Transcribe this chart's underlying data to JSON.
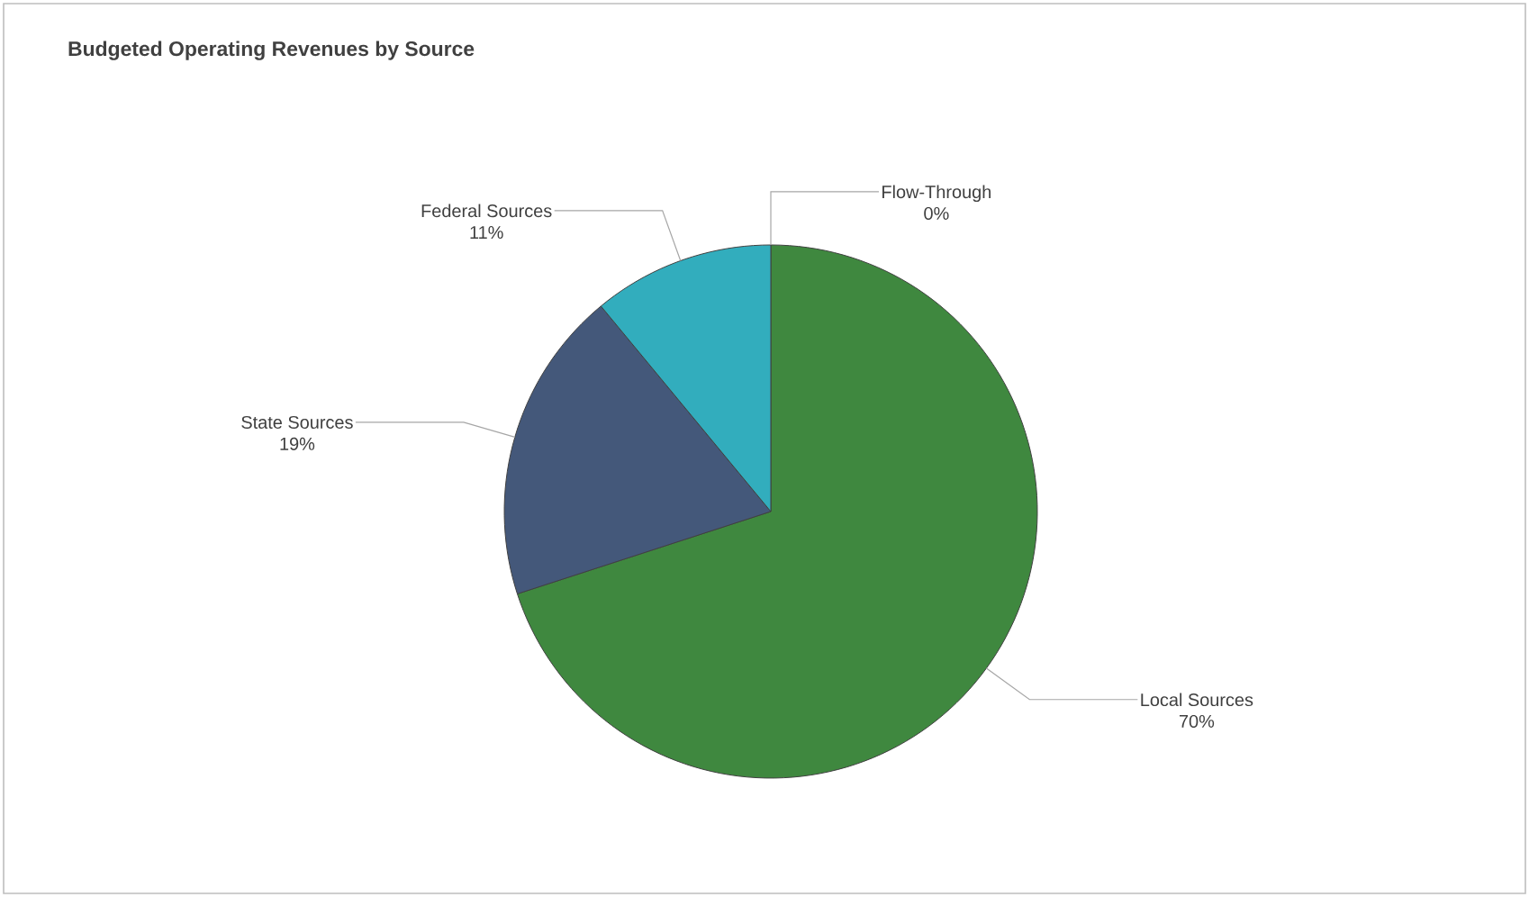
{
  "chart_data": {
    "type": "pie",
    "title": "Budgeted Operating Revenues by Source",
    "categories": [
      "Local Sources",
      "State Sources",
      "Federal Sources",
      "Flow-Through"
    ],
    "values": [
      70,
      19,
      11,
      0
    ],
    "colors": [
      "#3f883f",
      "#44587a",
      "#32adbd",
      "#9b9b9b"
    ],
    "value_labels": [
      "70%",
      "19%",
      "11%",
      "0%"
    ],
    "legend": false
  }
}
